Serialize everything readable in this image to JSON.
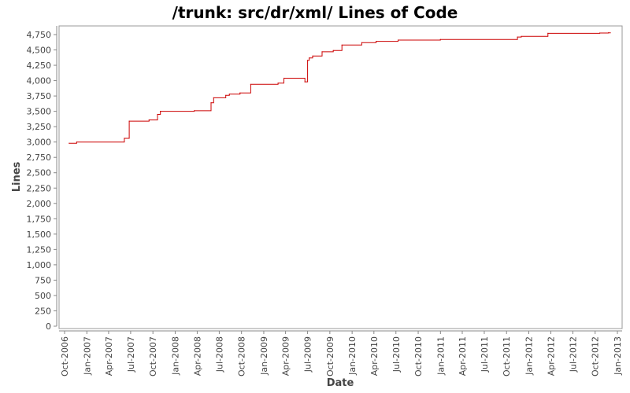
{
  "chart_data": {
    "type": "line",
    "title": "/trunk: src/dr/xml/ Lines of Code",
    "xlabel": "Date",
    "ylabel": "Lines",
    "xlim": [
      "2006-10-01",
      "2013-01-01"
    ],
    "ylim": [
      0,
      4875
    ],
    "grid": false,
    "legend": "none",
    "x_ticks": [
      "Oct-2006",
      "Jan-2007",
      "Apr-2007",
      "Jul-2007",
      "Oct-2007",
      "Jan-2008",
      "Apr-2008",
      "Jul-2008",
      "Oct-2008",
      "Jan-2009",
      "Apr-2009",
      "Jul-2009",
      "Oct-2009",
      "Jan-2010",
      "Apr-2010",
      "Jul-2010",
      "Oct-2010",
      "Jan-2011",
      "Apr-2011",
      "Jul-2011",
      "Oct-2011",
      "Jan-2012",
      "Apr-2012",
      "Jul-2012",
      "Oct-2012",
      "Jan-2013"
    ],
    "y_ticks": [
      0,
      250,
      500,
      750,
      1000,
      1250,
      1500,
      1750,
      2000,
      2250,
      2500,
      2750,
      3000,
      3250,
      3500,
      3750,
      4000,
      4250,
      4500,
      4750
    ],
    "series": [
      {
        "color": "#cc0000",
        "step": true,
        "x": [
          "2006-10-20",
          "2006-11-20",
          "2007-06-05",
          "2007-06-25",
          "2007-09-15",
          "2007-10-20",
          "2007-11-01",
          "2008-03-20",
          "2008-05-28",
          "2008-06-08",
          "2008-07-28",
          "2008-08-12",
          "2008-09-25",
          "2008-11-08",
          "2009-03-01",
          "2009-03-25",
          "2009-06-20",
          "2009-07-01",
          "2009-07-08",
          "2009-07-22",
          "2009-08-30",
          "2009-10-15",
          "2009-11-20",
          "2010-02-10",
          "2010-04-10",
          "2010-07-10",
          "2011-01-01",
          "2011-11-15",
          "2011-12-01",
          "2012-03-20",
          "2012-10-20",
          "2012-11-25"
        ],
        "y": [
          2980,
          3000,
          3060,
          3340,
          3360,
          3450,
          3500,
          3510,
          3640,
          3720,
          3760,
          3780,
          3800,
          3940,
          3960,
          4040,
          3980,
          4330,
          4370,
          4400,
          4470,
          4490,
          4580,
          4620,
          4640,
          4660,
          4670,
          4710,
          4720,
          4770,
          4775,
          4780
        ]
      }
    ]
  }
}
